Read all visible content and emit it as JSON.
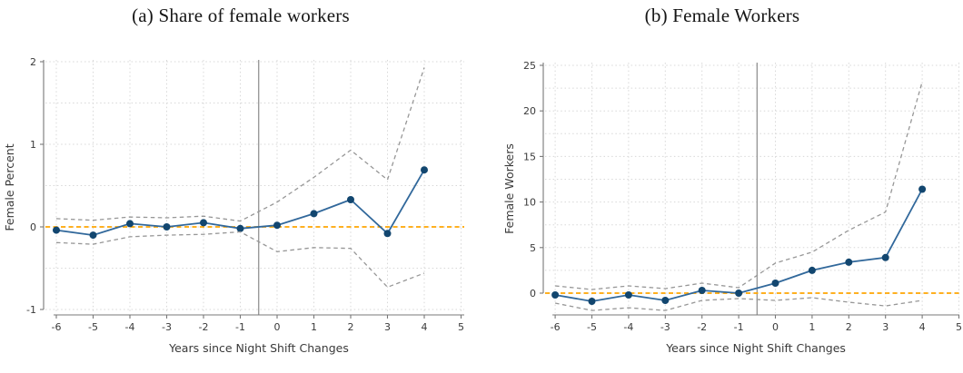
{
  "figure": {
    "background": "#ffffff"
  },
  "colors": {
    "estimate_line": "#31689b",
    "estimate_marker": "#12466f",
    "confidence_band": "#979797",
    "zero_line": "#ffa500",
    "event_line": "#898989",
    "grid": "#d8d8d8",
    "axis": "#787878",
    "tick_text": "#3a3a3a"
  },
  "chart_data": [
    {
      "type": "line",
      "panel": "a",
      "title": "(a) Share of female workers",
      "xlabel": "Years since Night Shift Changes",
      "ylabel": "Female Percent",
      "legend": false,
      "grid": true,
      "x": [
        -6,
        -5,
        -4,
        -3,
        -2,
        -1,
        0,
        1,
        2,
        3,
        4
      ],
      "series": [
        {
          "name": "estimate",
          "style": "solid-markers",
          "color": "#31689b",
          "marker_color": "#12466f",
          "values": [
            -0.04,
            -0.1,
            0.04,
            0.0,
            0.05,
            -0.02,
            0.02,
            0.16,
            0.33,
            -0.08,
            0.69
          ]
        },
        {
          "name": "ci-upper",
          "style": "dashed",
          "color": "#979797",
          "values": [
            0.1,
            0.08,
            0.12,
            0.11,
            0.13,
            0.07,
            0.3,
            0.6,
            0.93,
            0.57,
            1.93
          ]
        },
        {
          "name": "ci-lower",
          "style": "dashed",
          "color": "#979797",
          "values": [
            -0.19,
            -0.21,
            -0.12,
            -0.1,
            -0.09,
            -0.06,
            -0.3,
            -0.25,
            -0.26,
            -0.73,
            -0.56
          ]
        }
      ],
      "xticks": [
        -6,
        -5,
        -4,
        -3,
        -2,
        -1,
        0,
        1,
        2,
        3,
        4,
        5
      ],
      "yticks": [
        -1,
        0,
        1,
        2
      ],
      "grid_y_step": 0.5,
      "xlim": [
        -6.4,
        5.1
      ],
      "ylim": [
        -1.07,
        2.05
      ],
      "reference": {
        "zero_line_y": 0,
        "zero_line_color": "#ffa500",
        "event_line_x": -0.5,
        "event_line_color": "#898989"
      }
    },
    {
      "type": "line",
      "panel": "b",
      "title": "(b) Female Workers",
      "xlabel": "Years since Night Shift Changes",
      "ylabel": "Female Workers",
      "legend": false,
      "grid": true,
      "x": [
        -6,
        -5,
        -4,
        -3,
        -2,
        -1,
        0,
        1,
        2,
        3,
        4
      ],
      "series": [
        {
          "name": "estimate",
          "style": "solid-markers",
          "color": "#31689b",
          "marker_color": "#12466f",
          "values": [
            -0.2,
            -0.9,
            -0.2,
            -0.8,
            0.3,
            0.0,
            1.1,
            2.5,
            3.4,
            3.9,
            11.4
          ]
        },
        {
          "name": "ci-upper",
          "style": "dashed",
          "color": "#979797",
          "values": [
            0.8,
            0.4,
            0.8,
            0.5,
            1.1,
            0.6,
            3.3,
            4.5,
            6.9,
            8.9,
            23.2
          ]
        },
        {
          "name": "ci-lower",
          "style": "dashed",
          "color": "#979797",
          "values": [
            -1.1,
            -1.9,
            -1.6,
            -1.9,
            -0.8,
            -0.6,
            -0.8,
            -0.5,
            -1.0,
            -1.4,
            -0.8
          ]
        }
      ],
      "xticks": [
        -6,
        -5,
        -4,
        -3,
        -2,
        -1,
        0,
        1,
        2,
        3,
        4,
        5
      ],
      "yticks": [
        0,
        5,
        10,
        15,
        20,
        25
      ],
      "grid_y_step": 2.5,
      "xlim": [
        -6.4,
        5.1
      ],
      "ylim": [
        -2.5,
        25.4
      ],
      "reference": {
        "zero_line_y": 0,
        "zero_line_color": "#ffa500",
        "event_line_x": -0.5,
        "event_line_color": "#898989"
      }
    }
  ]
}
